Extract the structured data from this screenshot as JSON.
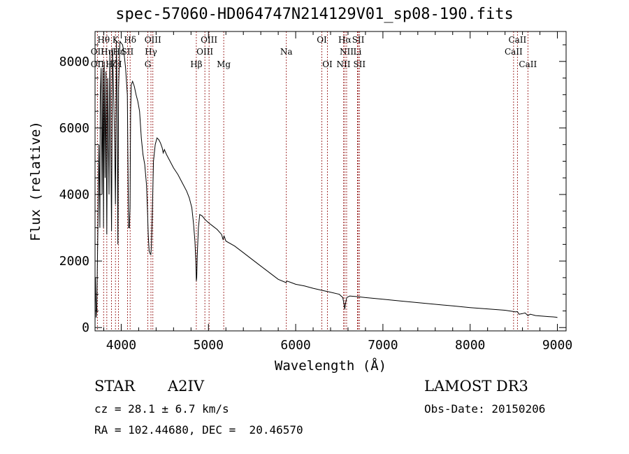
{
  "chart_data": {
    "type": "line",
    "title": "spec-57060-HD064747N214129V01_sp08-190.fits",
    "xlabel": "Wavelength (Å)",
    "ylabel": "Flux (relative)",
    "xlim": [
      3700,
      9100
    ],
    "ylim": [
      -100,
      8900
    ],
    "xticks": [
      4000,
      5000,
      6000,
      7000,
      8000,
      9000
    ],
    "yticks": [
      0,
      2000,
      4000,
      6000,
      8000
    ],
    "series": [
      {
        "name": "spectrum",
        "x": [
          3700,
          3705,
          3712,
          3720,
          3735,
          3745,
          3755,
          3760,
          3770,
          3780,
          3790,
          3797,
          3805,
          3815,
          3825,
          3835,
          3845,
          3860,
          3870,
          3880,
          3889,
          3900,
          3915,
          3925,
          3934,
          3945,
          3955,
          3962,
          3970,
          3985,
          4000,
          4015,
          4030,
          4050,
          4070,
          4080,
          4085,
          4093,
          4101,
          4108,
          4115,
          4130,
          4150,
          4170,
          4190,
          4210,
          4230,
          4250,
          4270,
          4290,
          4300,
          4310,
          4320,
          4335,
          4340,
          4345,
          4355,
          4370,
          4390,
          4410,
          4430,
          4450,
          4470,
          4481,
          4495,
          4520,
          4560,
          4600,
          4650,
          4700,
          4750,
          4780,
          4810,
          4830,
          4845,
          4855,
          4861,
          4866,
          4872,
          4885,
          4900,
          4930,
          4960,
          5000,
          5050,
          5100,
          5150,
          5167,
          5180,
          5200,
          5300,
          5400,
          5500,
          5600,
          5700,
          5800,
          5890,
          5900,
          5950,
          6000,
          6100,
          6200,
          6300,
          6400,
          6500,
          6540,
          6555,
          6563,
          6570,
          6585,
          6620,
          6700,
          6800,
          7000,
          7200,
          7400,
          7600,
          7800,
          8000,
          8200,
          8400,
          8498,
          8520,
          8542,
          8560,
          8600,
          8630,
          8662,
          8690,
          8750,
          8800,
          8850,
          8900,
          8950,
          8990,
          9000
        ],
        "y": [
          700,
          1500,
          300,
          600,
          3500,
          5500,
          3000,
          7000,
          7800,
          4000,
          7800,
          3000,
          8000,
          4500,
          7700,
          2800,
          7500,
          4000,
          8300,
          5500,
          2900,
          8400,
          6800,
          5500,
          3700,
          8600,
          6300,
          2500,
          7200,
          8600,
          8550,
          8500,
          8300,
          7800,
          7000,
          4200,
          3000,
          3000,
          3600,
          6500,
          7300,
          7400,
          7250,
          7000,
          6800,
          6500,
          5700,
          5200,
          4900,
          4300,
          3600,
          2800,
          2300,
          2200,
          2200,
          2400,
          3300,
          5000,
          5500,
          5700,
          5650,
          5550,
          5400,
          5250,
          5350,
          5200,
          5000,
          4800,
          4600,
          4350,
          4100,
          3900,
          3600,
          3100,
          2600,
          2000,
          1400,
          1500,
          2200,
          3000,
          3400,
          3350,
          3250,
          3150,
          3050,
          2950,
          2800,
          2650,
          2750,
          2600,
          2450,
          2250,
          2050,
          1850,
          1650,
          1450,
          1350,
          1400,
          1350,
          1300,
          1250,
          1180,
          1120,
          1060,
          1000,
          900,
          700,
          550,
          700,
          900,
          950,
          930,
          900,
          850,
          800,
          750,
          700,
          650,
          600,
          560,
          520,
          480,
          470,
          480,
          400,
          420,
          440,
          360,
          400,
          360,
          350,
          340,
          330,
          320,
          310,
          300
        ]
      }
    ],
    "line_labels": [
      {
        "text": "OII",
        "x": 3727,
        "row": 2
      },
      {
        "text": "OII",
        "x": 3727,
        "row": 3
      },
      {
        "text": "Hθ",
        "x": 3798,
        "row": 1
      },
      {
        "text": "Hη",
        "x": 3835,
        "row": 2
      },
      {
        "text": "Hζ",
        "x": 3889,
        "row": 3
      },
      {
        "text": "K",
        "x": 3934,
        "row": 1
      },
      {
        "text": "Hε",
        "x": 3970,
        "row": 2
      },
      {
        "text": "H",
        "x": 3968,
        "row": 3
      },
      {
        "text": "SII",
        "x": 4072,
        "row": 2
      },
      {
        "text": "Hδ",
        "x": 4102,
        "row": 1
      },
      {
        "text": "OIII",
        "x": 4363,
        "row": 1
      },
      {
        "text": "Hγ",
        "x": 4341,
        "row": 2
      },
      {
        "text": "G",
        "x": 4305,
        "row": 3
      },
      {
        "text": "Hβ",
        "x": 4861,
        "row": 3
      },
      {
        "text": "OIII",
        "x": 5007,
        "row": 1
      },
      {
        "text": "OIII",
        "x": 4959,
        "row": 2
      },
      {
        "text": "Mg",
        "x": 5175,
        "row": 3
      },
      {
        "text": "Na",
        "x": 5893,
        "row": 2
      },
      {
        "text": "OI",
        "x": 6300,
        "row": 1
      },
      {
        "text": "OI",
        "x": 6364,
        "row": 3
      },
      {
        "text": "Hα",
        "x": 6563,
        "row": 1
      },
      {
        "text": "NII",
        "x": 6584,
        "row": 2
      },
      {
        "text": "NII",
        "x": 6548,
        "row": 3
      },
      {
        "text": "SII",
        "x": 6717,
        "row": 1
      },
      {
        "text": "Li",
        "x": 6708,
        "row": 2
      },
      {
        "text": "SII",
        "x": 6731,
        "row": 3
      },
      {
        "text": "CaII",
        "x": 8542,
        "row": 1
      },
      {
        "text": "CaII",
        "x": 8498,
        "row": 2
      },
      {
        "text": "CaII",
        "x": 8662,
        "row": 3
      }
    ],
    "line_positions": [
      3727,
      3798,
      3835,
      3889,
      3934,
      3968,
      4072,
      4102,
      4305,
      4341,
      4363,
      4861,
      4959,
      5007,
      5175,
      5893,
      6300,
      6364,
      6548,
      6563,
      6584,
      6708,
      6717,
      6731,
      8498,
      8542,
      8662
    ],
    "line_color": "#8b0000"
  },
  "info": {
    "obj_type": "STAR",
    "subclass": "A2IV",
    "survey": "LAMOST DR3",
    "cz": "cz = 28.1 ± 6.7 km/s",
    "obs_date": "Obs-Date: 20150206",
    "coords": "RA = 102.44680, DEC =  20.46570"
  }
}
